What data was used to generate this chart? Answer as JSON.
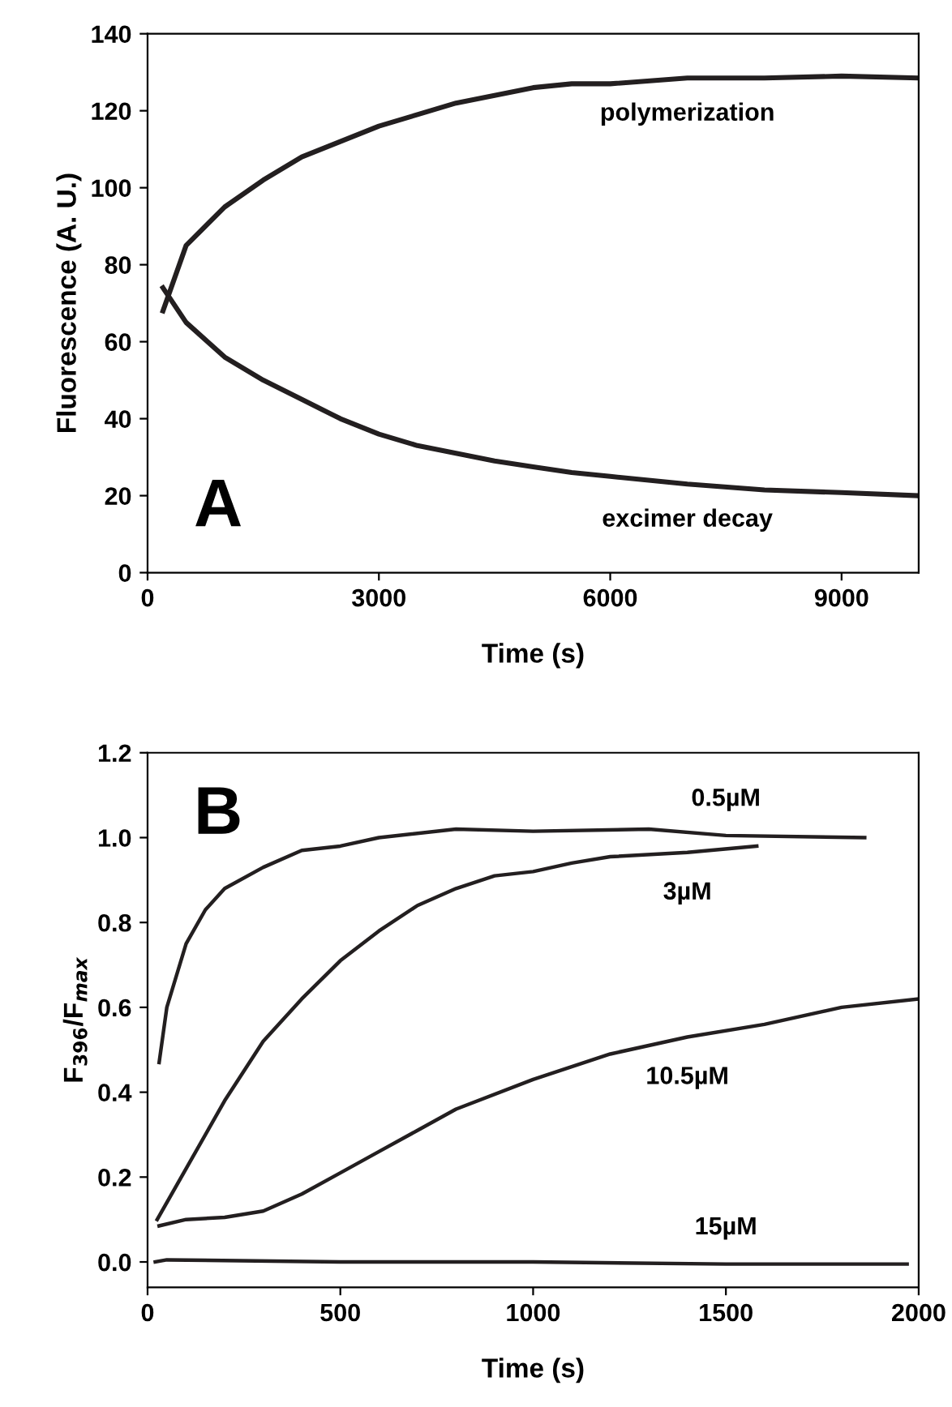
{
  "chart_data": [
    {
      "type": "line",
      "xlabel": "Time (s)",
      "ylabel": "Fluorescence (A. U.)",
      "xlim": [
        0,
        10000
      ],
      "ylim": [
        0,
        140
      ],
      "xticks": [
        0,
        3000,
        6000,
        9000
      ],
      "yticks": [
        0,
        20,
        40,
        60,
        80,
        100,
        120,
        140
      ],
      "grid": false,
      "legend": false,
      "marker": "none",
      "line_style": "solid",
      "annotations": [
        "A"
      ],
      "series": [
        {
          "name": "polymerization",
          "color": "#231f20",
          "x": [
            200,
            500,
            1000,
            1500,
            2000,
            2500,
            3000,
            3500,
            4000,
            4500,
            5000,
            5500,
            6000,
            7000,
            8000,
            9000,
            10000
          ],
          "values": [
            68,
            85,
            95,
            102,
            108,
            112,
            116,
            119,
            122,
            124,
            126,
            127,
            127,
            128.5,
            128.5,
            129,
            128.5
          ]
        },
        {
          "name": "excimer decay",
          "color": "#231f20",
          "x": [
            200,
            500,
            1000,
            1500,
            2000,
            2500,
            3000,
            3500,
            4000,
            4500,
            5000,
            5500,
            6000,
            7000,
            8000,
            9000,
            10000
          ],
          "values": [
            74,
            65,
            56,
            50,
            45,
            40,
            36,
            33,
            31,
            29,
            27.5,
            26,
            25,
            23,
            21.5,
            20.8,
            20
          ]
        }
      ]
    },
    {
      "type": "line",
      "xlabel": "Time (s)",
      "ylabel": "F$_{396}$/F$_{max}$",
      "xlim": [
        0,
        2000
      ],
      "ylim": [
        -0.06,
        1.2
      ],
      "xticks": [
        0,
        500,
        1000,
        1500,
        2000
      ],
      "yticks": [
        {
          "value": 0,
          "label": "0.0"
        },
        0.2,
        0.4,
        0.6,
        0.8,
        {
          "value": 1,
          "label": "1.0"
        },
        1.2
      ],
      "grid": false,
      "legend": false,
      "marker": "none",
      "line_style": "solid",
      "annotations": [
        "B"
      ],
      "series": [
        {
          "name": "0.5µM",
          "color": "#231f20",
          "x": [
            30,
            50,
            100,
            150,
            200,
            300,
            400,
            500,
            600,
            800,
            1000,
            1300,
            1500,
            1860
          ],
          "values": [
            0.47,
            0.6,
            0.75,
            0.83,
            0.88,
            0.93,
            0.97,
            0.98,
            1.0,
            1.02,
            1.015,
            1.02,
            1.005,
            1.0
          ]
        },
        {
          "name": "3µM",
          "color": "#231f20",
          "x": [
            25,
            100,
            200,
            300,
            400,
            500,
            600,
            700,
            800,
            900,
            1000,
            1100,
            1200,
            1400,
            1580
          ],
          "values": [
            0.1,
            0.22,
            0.38,
            0.52,
            0.62,
            0.71,
            0.78,
            0.84,
            0.88,
            0.91,
            0.92,
            0.94,
            0.955,
            0.965,
            0.98
          ]
        },
        {
          "name": "10.5µM",
          "color": "#231f20",
          "x": [
            30,
            100,
            200,
            300,
            400,
            500,
            600,
            700,
            800,
            1000,
            1200,
            1400,
            1600,
            1800,
            2000
          ],
          "values": [
            0.085,
            0.1,
            0.105,
            0.12,
            0.16,
            0.21,
            0.26,
            0.31,
            0.36,
            0.43,
            0.49,
            0.53,
            0.56,
            0.6,
            0.62
          ]
        },
        {
          "name": "15µM",
          "color": "#231f20",
          "x": [
            20,
            50,
            500,
            1000,
            1500,
            1970
          ],
          "values": [
            0.0,
            0.005,
            0.0,
            0.0,
            -0.005,
            -0.005
          ]
        }
      ]
    }
  ]
}
